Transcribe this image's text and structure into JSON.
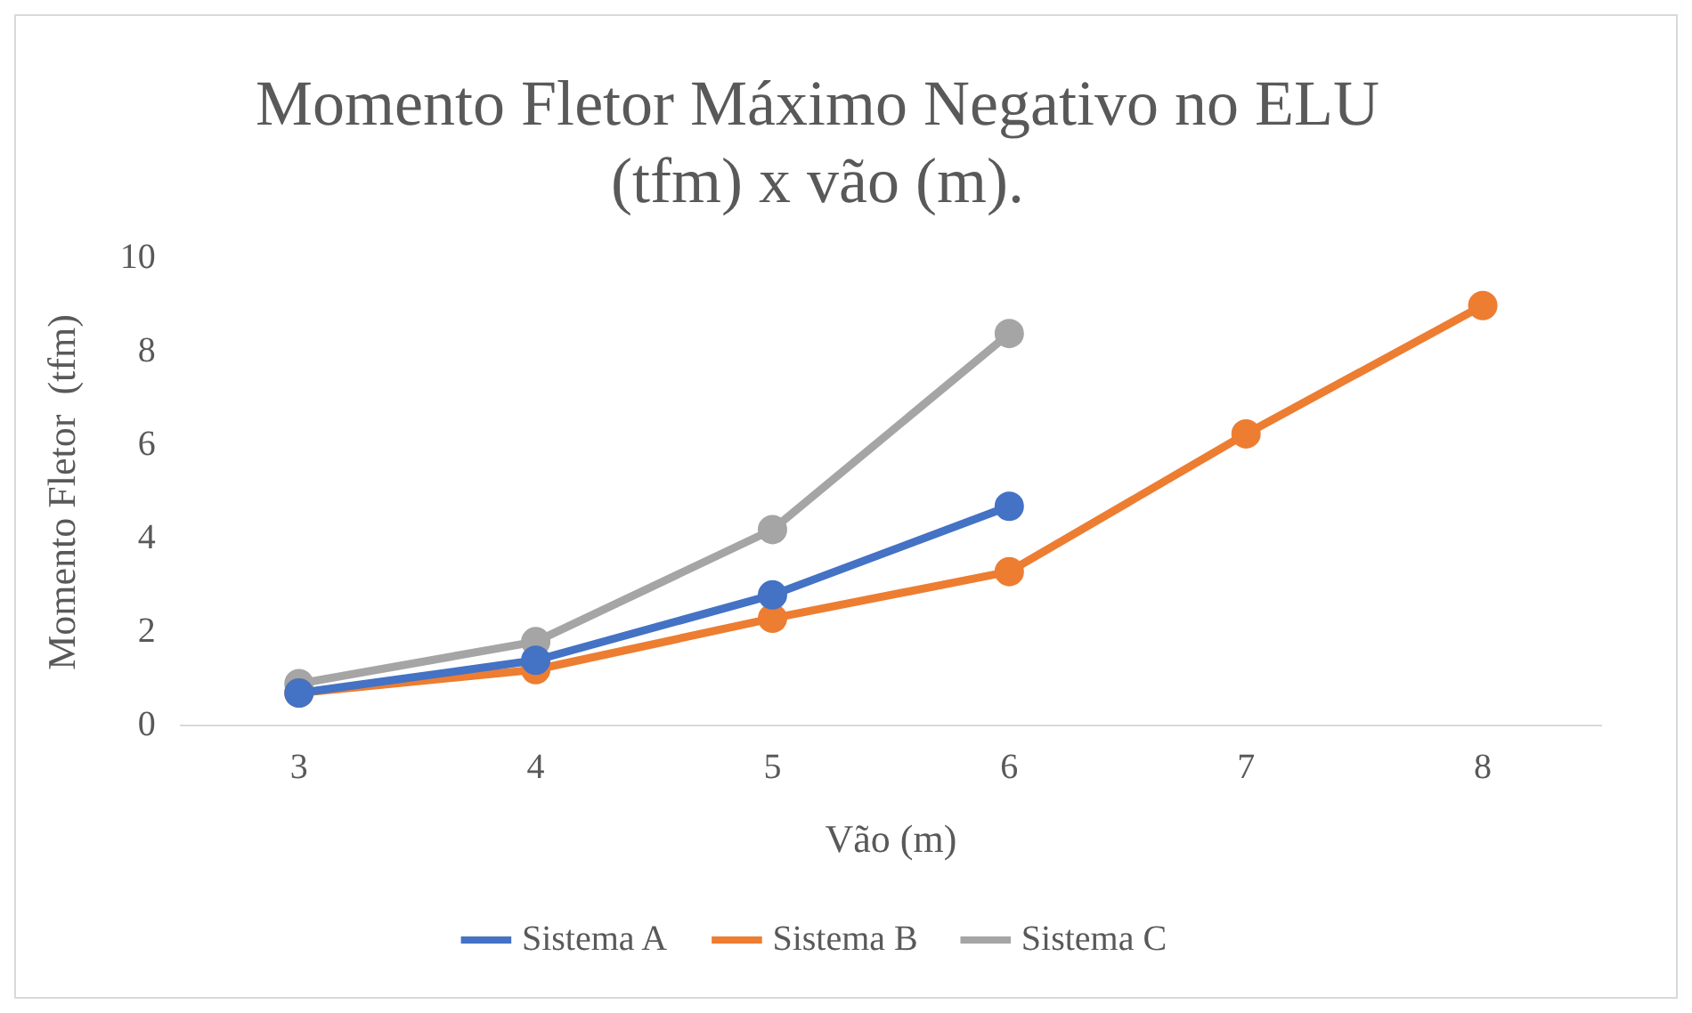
{
  "chart_data": {
    "type": "line",
    "title": [
      "Momento Fletor Máximo Negativo no ELU",
      "(tfm) x vão (m)."
    ],
    "xlabel": "Vão (m)",
    "ylabel": "Momento Fletor  (tfm)",
    "categories": [
      "3",
      "4",
      "5",
      "6",
      "7",
      "8"
    ],
    "series": [
      {
        "name": "Sistema A",
        "color": "#4472c4",
        "values": [
          0.7,
          1.4,
          2.8,
          4.7,
          null,
          null
        ]
      },
      {
        "name": "Sistema B",
        "color": "#ed7d31",
        "values": [
          0.7,
          1.2,
          2.3,
          3.3,
          6.25,
          9.0
        ]
      },
      {
        "name": "Sistema C",
        "color": "#a5a5a5",
        "values": [
          0.9,
          1.8,
          4.2,
          8.4,
          null,
          null
        ]
      }
    ],
    "ylim": [
      0,
      10
    ],
    "yticks": [
      0,
      2,
      4,
      6,
      8,
      10
    ],
    "grid": false,
    "legend": "bottom",
    "marker": "circle",
    "line_style": "solid"
  }
}
